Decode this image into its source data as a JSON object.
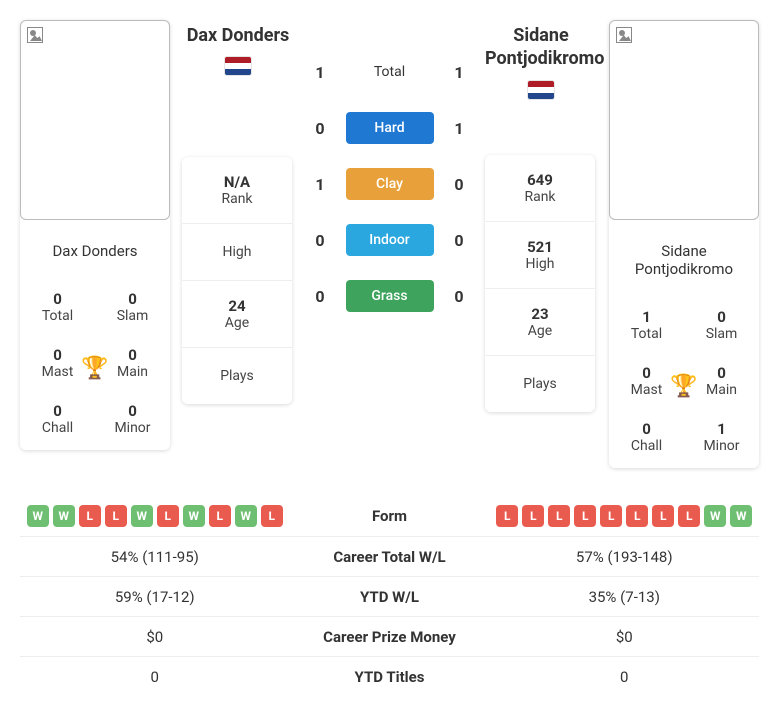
{
  "colors": {
    "win": "#6fbf73",
    "loss": "#e95b4e",
    "hard": "#1f78d1",
    "clay": "#e8a13a",
    "indoor": "#2aa7df",
    "grass": "#3da35d",
    "trophy": "#2b4a86",
    "flag_red": "#ae1c28",
    "flag_white": "#ffffff",
    "flag_blue": "#21468b"
  },
  "labels": {
    "total": "Total",
    "slam": "Slam",
    "mast": "Mast",
    "main": "Main",
    "chall": "Chall",
    "minor": "Minor",
    "rank": "Rank",
    "high": "High",
    "age": "Age",
    "plays": "Plays",
    "surf_total": "Total",
    "surf_hard": "Hard",
    "surf_clay": "Clay",
    "surf_indoor": "Indoor",
    "surf_grass": "Grass"
  },
  "player1": {
    "name": "Dax Donders",
    "flag": "NED",
    "titles": {
      "total": "0",
      "slam": "0",
      "mast": "0",
      "main": "0",
      "chall": "0",
      "minor": "0"
    },
    "rank": "N/A",
    "high": "",
    "age": "24",
    "plays": ""
  },
  "player2": {
    "name": "Sidane Pontjodikromo",
    "flag": "NED",
    "titles": {
      "total": "1",
      "slam": "0",
      "mast": "0",
      "main": "0",
      "chall": "0",
      "minor": "1"
    },
    "rank": "649",
    "high": "521",
    "age": "23",
    "plays": ""
  },
  "h2h": {
    "total": {
      "p1": "1",
      "p2": "1"
    },
    "hard": {
      "p1": "0",
      "p2": "1"
    },
    "clay": {
      "p1": "1",
      "p2": "0"
    },
    "indoor": {
      "p1": "0",
      "p2": "0"
    },
    "grass": {
      "p1": "0",
      "p2": "0"
    }
  },
  "compare": {
    "rows": [
      {
        "label": "Form"
      },
      {
        "label": "Career Total W/L",
        "p1": "54% (111-95)",
        "p2": "57% (193-148)"
      },
      {
        "label": "YTD W/L",
        "p1": "59% (17-12)",
        "p2": "35% (7-13)"
      },
      {
        "label": "Career Prize Money",
        "p1": "$0",
        "p2": "$0"
      },
      {
        "label": "YTD Titles",
        "p1": "0",
        "p2": "0"
      }
    ],
    "form": {
      "p1": [
        "W",
        "W",
        "L",
        "L",
        "W",
        "L",
        "W",
        "L",
        "W",
        "L"
      ],
      "p2": [
        "L",
        "L",
        "L",
        "L",
        "L",
        "L",
        "L",
        "L",
        "W",
        "W"
      ]
    }
  }
}
